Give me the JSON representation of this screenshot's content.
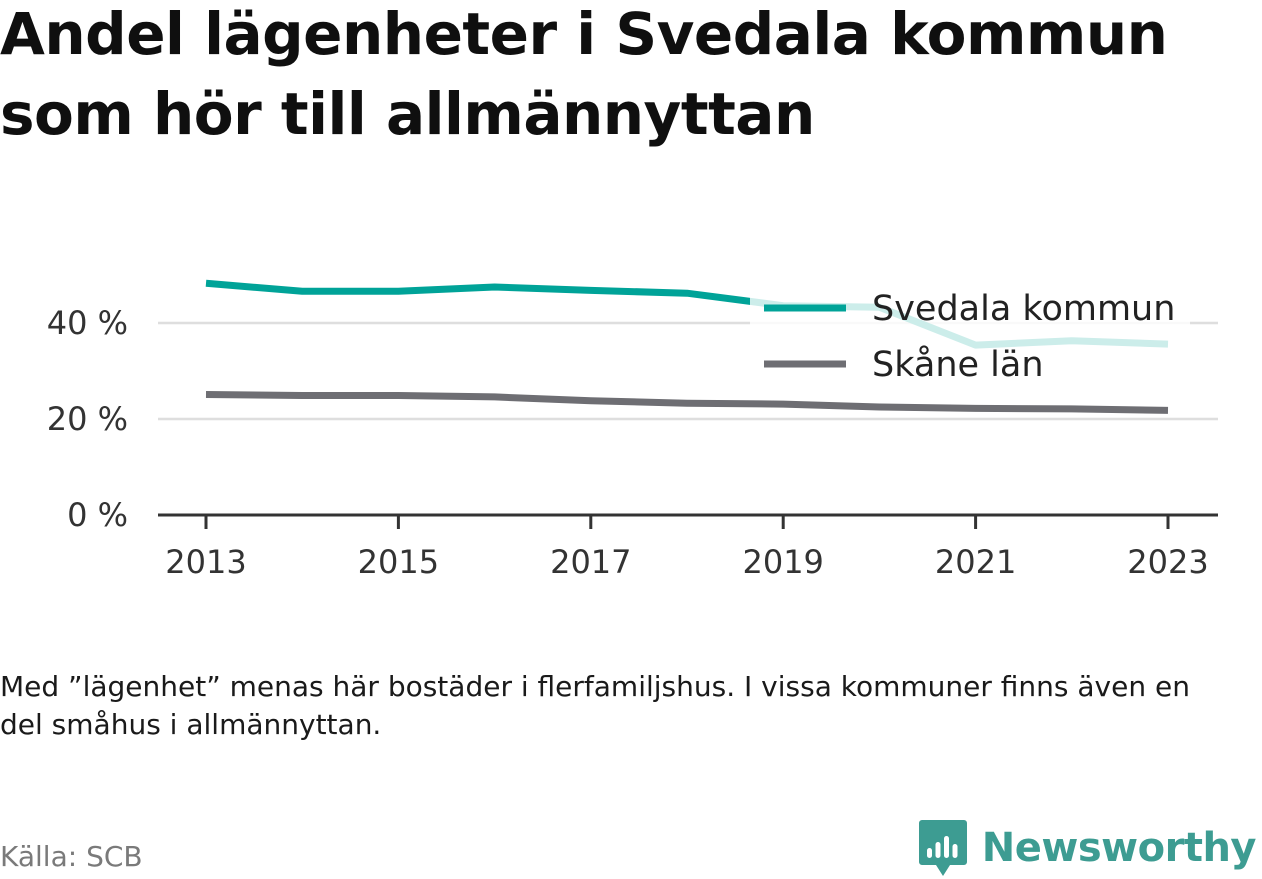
{
  "title": "Andel lägenheter i Svedala kommun som hör till allmännyttan",
  "note": "Med ”lägenhet” menas här bostäder i flerfamiljshus. I vissa kommuner finns även en del småhus i allmännyttan.",
  "source": "Källa: SCB",
  "brand": {
    "name": "Newsworthy",
    "color": "#3d9c92",
    "icon": "newsworthy-logo-icon"
  },
  "chart_data": {
    "type": "line",
    "x": [
      2013,
      2014,
      2015,
      2016,
      2017,
      2018,
      2019,
      2020,
      2021,
      2022,
      2023
    ],
    "x_tick_labels": [
      "2013",
      "2015",
      "2017",
      "2019",
      "2021",
      "2023"
    ],
    "y_tick_labels": [
      "0 %",
      "20 %",
      "40 %"
    ],
    "y_ticks": [
      0,
      20,
      40
    ],
    "ylim": [
      0,
      50
    ],
    "grid": true,
    "legend_position": "top-right",
    "series": [
      {
        "name": "Svedala kommun",
        "color": "#00a398",
        "values": [
          48.3,
          46.6,
          46.6,
          47.5,
          46.8,
          46.2,
          43.6,
          43.3,
          35.4,
          36.3,
          35.6
        ]
      },
      {
        "name": "Skåne län",
        "color": "#6e6e73",
        "values": [
          25.1,
          24.9,
          24.9,
          24.6,
          23.8,
          23.3,
          23.1,
          22.5,
          22.2,
          22.1,
          21.8
        ]
      }
    ]
  }
}
